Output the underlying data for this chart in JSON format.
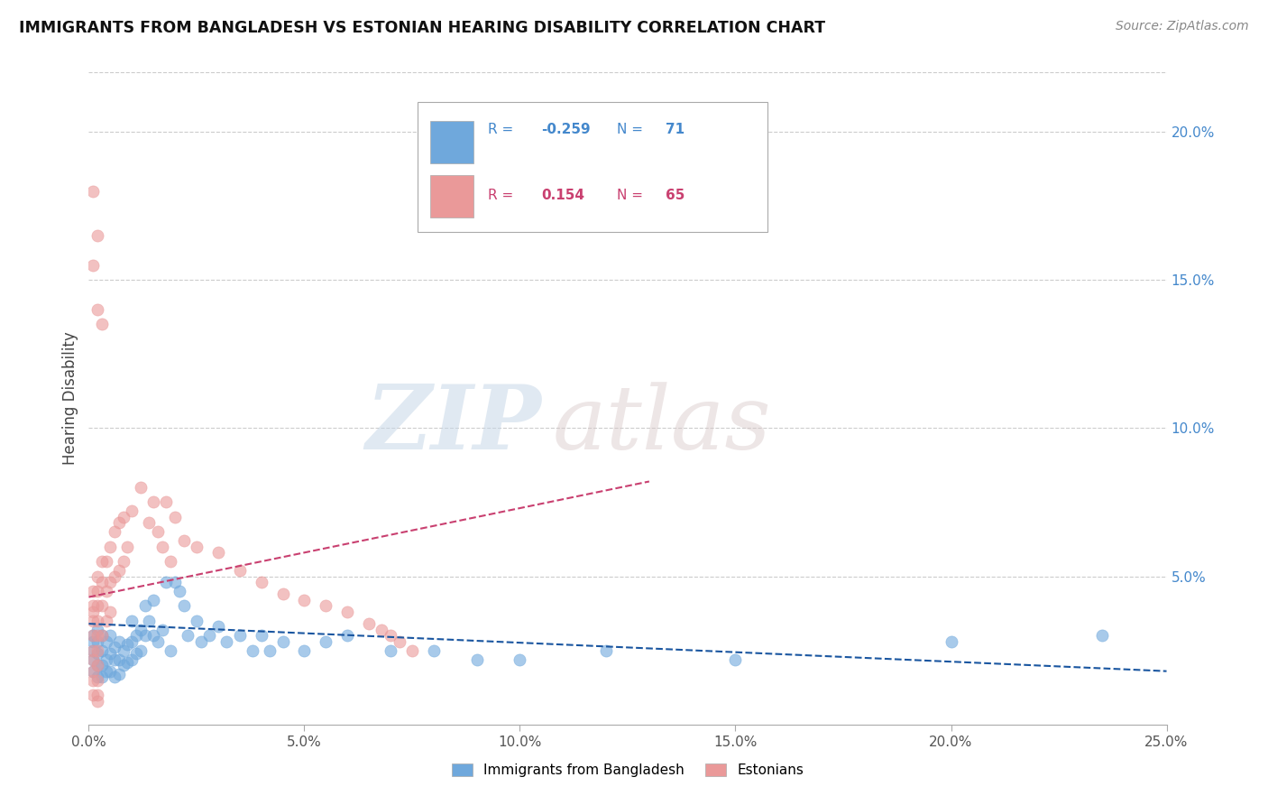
{
  "title": "IMMIGRANTS FROM BANGLADESH VS ESTONIAN HEARING DISABILITY CORRELATION CHART",
  "source": "Source: ZipAtlas.com",
  "ylabel": "Hearing Disability",
  "xlim": [
    0.0,
    0.25
  ],
  "ylim": [
    0.0,
    0.22
  ],
  "xticks": [
    0.0,
    0.05,
    0.1,
    0.15,
    0.2,
    0.25
  ],
  "xtick_labels": [
    "0.0%",
    "5.0%",
    "10.0%",
    "15.0%",
    "20.0%",
    "25.0%"
  ],
  "yticks_right": [
    0.05,
    0.1,
    0.15,
    0.2
  ],
  "ytick_labels_right": [
    "5.0%",
    "10.0%",
    "15.0%",
    "20.0%"
  ],
  "blue_color": "#6fa8dc",
  "pink_color": "#ea9999",
  "blue_line_color": "#1a56a0",
  "pink_line_color": "#c94070",
  "legend_R1": "-0.259",
  "legend_N1": "71",
  "legend_R2": "0.154",
  "legend_N2": "65",
  "label1": "Immigrants from Bangladesh",
  "label2": "Estonians",
  "watermark_zip": "ZIP",
  "watermark_atlas": "atlas",
  "blue_scatter_x": [
    0.001,
    0.001,
    0.001,
    0.001,
    0.001,
    0.002,
    0.002,
    0.002,
    0.002,
    0.002,
    0.003,
    0.003,
    0.003,
    0.003,
    0.004,
    0.004,
    0.004,
    0.005,
    0.005,
    0.005,
    0.006,
    0.006,
    0.006,
    0.007,
    0.007,
    0.007,
    0.008,
    0.008,
    0.009,
    0.009,
    0.01,
    0.01,
    0.01,
    0.011,
    0.011,
    0.012,
    0.012,
    0.013,
    0.013,
    0.014,
    0.015,
    0.015,
    0.016,
    0.017,
    0.018,
    0.019,
    0.02,
    0.021,
    0.022,
    0.023,
    0.025,
    0.026,
    0.028,
    0.03,
    0.032,
    0.035,
    0.038,
    0.04,
    0.042,
    0.045,
    0.05,
    0.055,
    0.06,
    0.07,
    0.08,
    0.09,
    0.1,
    0.12,
    0.15,
    0.2,
    0.235
  ],
  "blue_scatter_y": [
    0.03,
    0.028,
    0.025,
    0.022,
    0.018,
    0.032,
    0.028,
    0.024,
    0.02,
    0.016,
    0.03,
    0.025,
    0.02,
    0.016,
    0.028,
    0.022,
    0.018,
    0.03,
    0.024,
    0.018,
    0.026,
    0.022,
    0.016,
    0.028,
    0.022,
    0.017,
    0.025,
    0.02,
    0.027,
    0.021,
    0.035,
    0.028,
    0.022,
    0.03,
    0.024,
    0.032,
    0.025,
    0.04,
    0.03,
    0.035,
    0.042,
    0.03,
    0.028,
    0.032,
    0.048,
    0.025,
    0.048,
    0.045,
    0.04,
    0.03,
    0.035,
    0.028,
    0.03,
    0.033,
    0.028,
    0.03,
    0.025,
    0.03,
    0.025,
    0.028,
    0.025,
    0.028,
    0.03,
    0.025,
    0.025,
    0.022,
    0.022,
    0.025,
    0.022,
    0.028,
    0.03
  ],
  "pink_scatter_x": [
    0.001,
    0.001,
    0.001,
    0.001,
    0.001,
    0.001,
    0.001,
    0.001,
    0.001,
    0.001,
    0.002,
    0.002,
    0.002,
    0.002,
    0.002,
    0.002,
    0.002,
    0.002,
    0.002,
    0.002,
    0.003,
    0.003,
    0.003,
    0.003,
    0.004,
    0.004,
    0.004,
    0.005,
    0.005,
    0.005,
    0.006,
    0.006,
    0.007,
    0.007,
    0.008,
    0.008,
    0.009,
    0.01,
    0.012,
    0.014,
    0.015,
    0.016,
    0.017,
    0.018,
    0.019,
    0.02,
    0.022,
    0.025,
    0.03,
    0.035,
    0.04,
    0.045,
    0.05,
    0.055,
    0.06,
    0.065,
    0.068,
    0.07,
    0.072,
    0.075,
    0.001,
    0.001,
    0.002,
    0.002,
    0.003
  ],
  "pink_scatter_y": [
    0.045,
    0.04,
    0.038,
    0.035,
    0.03,
    0.025,
    0.022,
    0.018,
    0.015,
    0.01,
    0.05,
    0.045,
    0.04,
    0.035,
    0.03,
    0.025,
    0.02,
    0.015,
    0.01,
    0.008,
    0.055,
    0.048,
    0.04,
    0.03,
    0.055,
    0.045,
    0.035,
    0.06,
    0.048,
    0.038,
    0.065,
    0.05,
    0.068,
    0.052,
    0.07,
    0.055,
    0.06,
    0.072,
    0.08,
    0.068,
    0.075,
    0.065,
    0.06,
    0.075,
    0.055,
    0.07,
    0.062,
    0.06,
    0.058,
    0.052,
    0.048,
    0.044,
    0.042,
    0.04,
    0.038,
    0.034,
    0.032,
    0.03,
    0.028,
    0.025,
    0.18,
    0.155,
    0.14,
    0.165,
    0.135
  ]
}
